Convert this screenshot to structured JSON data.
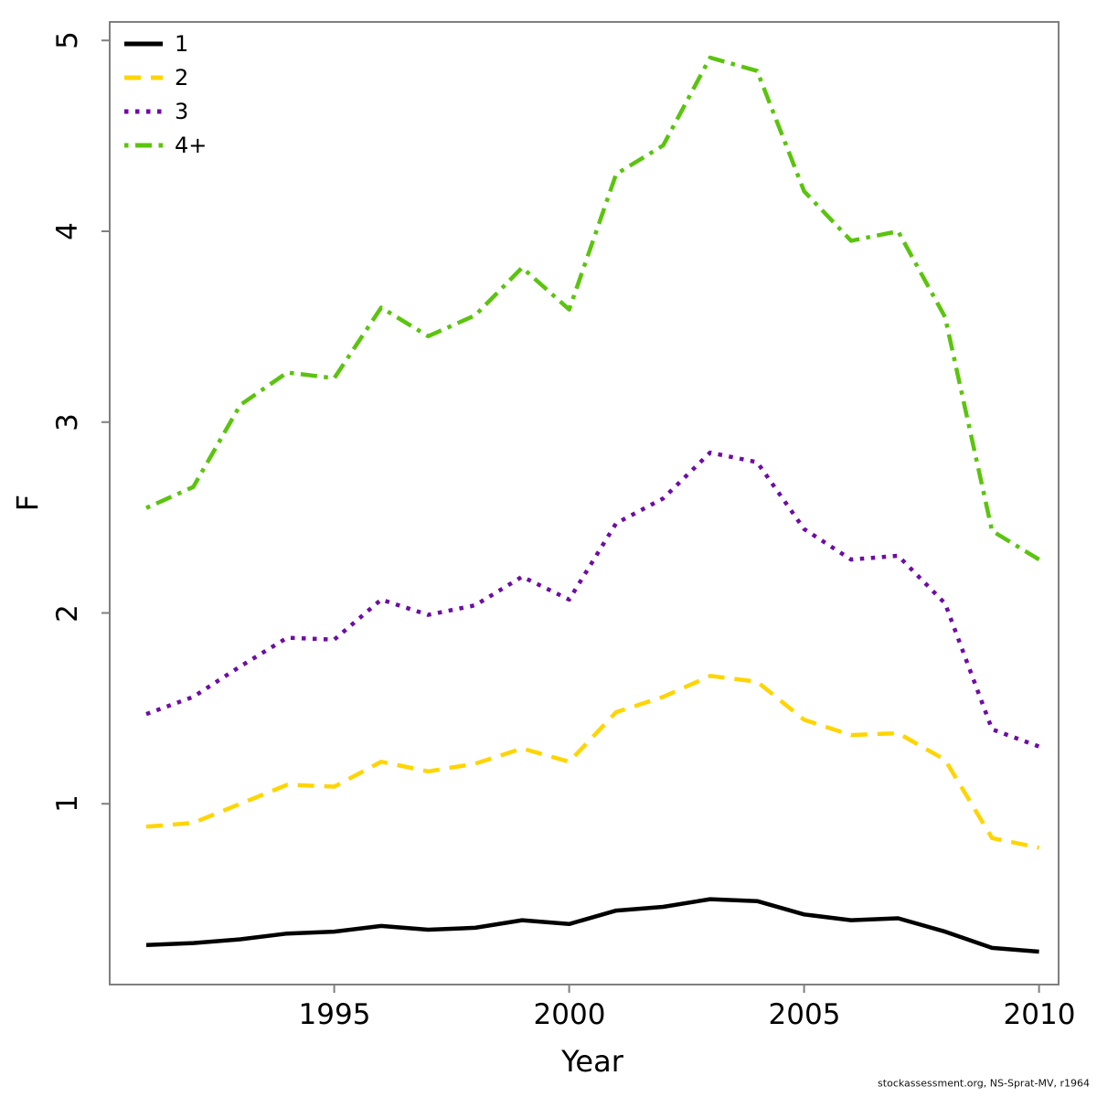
{
  "figure": {
    "footer": "stockassessment.org, NS-Sprat-MV, r1964"
  },
  "chart_data": {
    "type": "line",
    "title": "",
    "xlabel": "Year",
    "ylabel": "F",
    "xlim": [
      1990.2,
      2010.4
    ],
    "ylim": [
      0.05,
      5.1
    ],
    "grid": false,
    "legend_position": "top-left",
    "x": [
      1991,
      1992,
      1993,
      1994,
      1995,
      1996,
      1997,
      1998,
      1999,
      2000,
      2001,
      2002,
      2003,
      2004,
      2005,
      2006,
      2007,
      2008,
      2009,
      2010
    ],
    "series": [
      {
        "name": "1",
        "color": "#000000",
        "style": "solid",
        "values": [
          0.26,
          0.27,
          0.29,
          0.32,
          0.33,
          0.36,
          0.34,
          0.35,
          0.39,
          0.37,
          0.44,
          0.46,
          0.5,
          0.49,
          0.42,
          0.39,
          0.4,
          0.33,
          0.245,
          0.225
        ]
      },
      {
        "name": "2",
        "color": "#FFD500",
        "style": "longdash",
        "values": [
          0.88,
          0.9,
          1.0,
          1.1,
          1.09,
          1.22,
          1.17,
          1.21,
          1.29,
          1.22,
          1.48,
          1.56,
          1.67,
          1.64,
          1.44,
          1.36,
          1.37,
          1.23,
          0.82,
          0.77
        ]
      },
      {
        "name": "3",
        "color": "#6E0CA5",
        "style": "dotted",
        "values": [
          1.47,
          1.56,
          1.72,
          1.87,
          1.86,
          2.07,
          1.99,
          2.04,
          2.19,
          2.07,
          2.47,
          2.6,
          2.84,
          2.79,
          2.44,
          2.28,
          2.3,
          2.05,
          1.39,
          1.3
        ]
      },
      {
        "name": "4+",
        "color": "#5BC40D",
        "style": "dotdash",
        "values": [
          2.55,
          2.66,
          3.09,
          3.26,
          3.23,
          3.6,
          3.45,
          3.56,
          3.81,
          3.59,
          4.3,
          4.45,
          4.91,
          4.84,
          4.21,
          3.95,
          4.0,
          3.55,
          2.43,
          2.28
        ]
      }
    ],
    "xticks": [
      {
        "v": 1995,
        "label": "1995"
      },
      {
        "v": 2000,
        "label": "2000"
      },
      {
        "v": 2005,
        "label": "2005"
      },
      {
        "v": 2010,
        "label": "2010"
      }
    ],
    "yticks": [
      {
        "v": 1,
        "label": "1"
      },
      {
        "v": 2,
        "label": "2"
      },
      {
        "v": 3,
        "label": "3"
      },
      {
        "v": 4,
        "label": "4"
      },
      {
        "v": 5,
        "label": "5"
      }
    ],
    "legend": {
      "items": [
        {
          "label": "1"
        },
        {
          "label": "2"
        },
        {
          "label": "3"
        },
        {
          "label": "4+"
        }
      ]
    },
    "axis_color": "#7f7f7f"
  }
}
